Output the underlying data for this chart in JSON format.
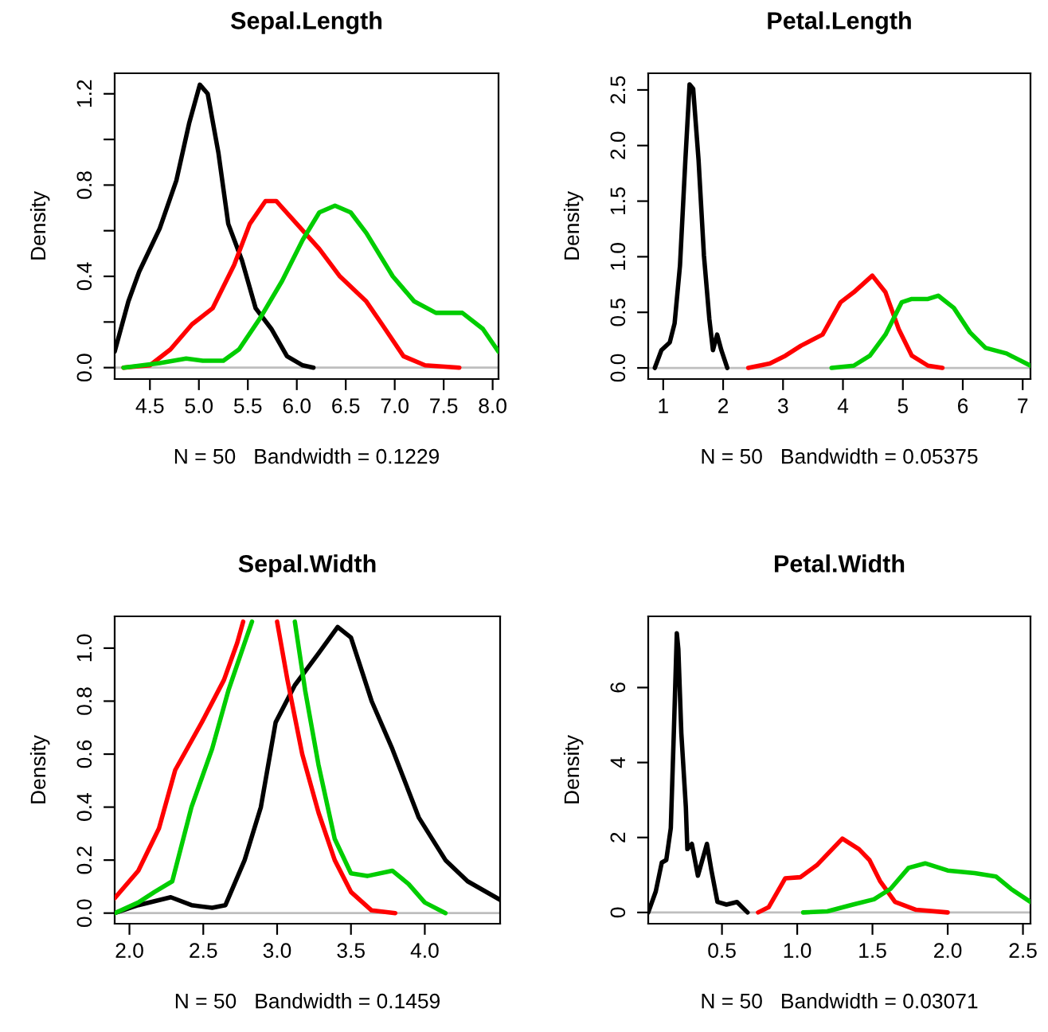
{
  "chart_data": [
    {
      "type": "line",
      "title": "Sepal.Length",
      "xlabel": "N = 50   Bandwidth = 0.1229",
      "ylabel": "Density",
      "xlim": [
        4.14,
        8.06
      ],
      "ylim": [
        -0.05,
        1.29
      ],
      "xticks": [
        4.5,
        {
          "value": 5,
          "label": "5.0"
        },
        5.5,
        {
          "value": 6,
          "label": "6.0"
        },
        6.5,
        {
          "value": 7,
          "label": "7.0"
        },
        7.5,
        {
          "value": 8,
          "label": "8.0"
        }
      ],
      "yticks": [
        {
          "value": 0,
          "label": "0.0"
        },
        {
          "value": 0.2,
          "label": null
        },
        0.4,
        {
          "value": 0.6,
          "label": null
        },
        0.8,
        {
          "value": 1.0,
          "label": null
        },
        1.2
      ],
      "ref_lines": [
        {
          "axis": "y",
          "value": 0,
          "color": "#bebebe"
        }
      ],
      "series": [
        {
          "color": "#000000",
          "x": [
            4.14,
            4.28,
            4.39,
            4.6,
            4.77,
            4.9,
            5.01,
            5.09,
            5.2,
            5.3,
            5.44,
            5.58,
            5.74,
            5.9,
            6.06,
            6.17
          ],
          "values": [
            0.07,
            0.29,
            0.42,
            0.61,
            0.82,
            1.07,
            1.24,
            1.2,
            0.94,
            0.63,
            0.47,
            0.26,
            0.17,
            0.05,
            0.01,
            0
          ]
        },
        {
          "color": "#ff0000",
          "x": [
            4.23,
            4.5,
            4.71,
            4.93,
            5.14,
            5.36,
            5.52,
            5.68,
            5.79,
            6.0,
            6.23,
            6.44,
            6.71,
            6.87,
            7.09,
            7.31,
            7.66
          ],
          "values": [
            0,
            0.01,
            0.08,
            0.19,
            0.26,
            0.45,
            0.63,
            0.73,
            0.73,
            0.63,
            0.52,
            0.4,
            0.29,
            0.19,
            0.05,
            0.01,
            0
          ]
        },
        {
          "color": "#00cd00",
          "x": [
            4.23,
            4.6,
            4.87,
            5.04,
            5.25,
            5.41,
            5.63,
            5.85,
            6.06,
            6.23,
            6.39,
            6.55,
            6.71,
            6.98,
            7.2,
            7.42,
            7.69,
            7.9,
            8.06
          ],
          "values": [
            0,
            0.02,
            0.04,
            0.03,
            0.03,
            0.08,
            0.22,
            0.38,
            0.56,
            0.68,
            0.71,
            0.68,
            0.59,
            0.4,
            0.29,
            0.24,
            0.24,
            0.17,
            0.07
          ]
        }
      ]
    },
    {
      "type": "line",
      "title": "Petal.Length",
      "xlabel": "N = 50   Bandwidth = 0.05375",
      "ylabel": "Density",
      "xlim": [
        0.75,
        7.13
      ],
      "ylim": [
        -0.1,
        2.65
      ],
      "xticks": [
        1,
        2,
        3,
        4,
        5,
        6,
        7
      ],
      "yticks": [
        {
          "value": 0,
          "label": "0.0"
        },
        0.5,
        {
          "value": 1,
          "label": "1.0"
        },
        1.5,
        {
          "value": 2,
          "label": "2.0"
        },
        2.5
      ],
      "ref_lines": [
        {
          "axis": "y",
          "value": 0,
          "color": "#bebebe"
        }
      ],
      "series": [
        {
          "color": "#000000",
          "x": [
            0.86,
            0.97,
            1.11,
            1.19,
            1.28,
            1.37,
            1.44,
            1.5,
            1.59,
            1.68,
            1.77,
            1.83,
            1.9,
            1.97,
            2.07
          ],
          "values": [
            0,
            0.16,
            0.23,
            0.4,
            0.92,
            1.87,
            2.55,
            2.51,
            1.87,
            1.01,
            0.44,
            0.16,
            0.3,
            0.16,
            0
          ]
        },
        {
          "color": "#ff0000",
          "x": [
            2.42,
            2.78,
            3.04,
            3.3,
            3.66,
            3.96,
            4.18,
            4.49,
            4.71,
            4.93,
            5.15,
            5.42,
            5.66
          ],
          "values": [
            0,
            0.04,
            0.11,
            0.2,
            0.3,
            0.59,
            0.68,
            0.83,
            0.68,
            0.35,
            0.11,
            0.02,
            0
          ]
        },
        {
          "color": "#00cd00",
          "x": [
            3.81,
            4.18,
            4.45,
            4.71,
            4.98,
            5.15,
            5.42,
            5.59,
            5.85,
            6.12,
            6.38,
            6.73,
            7.13
          ],
          "values": [
            0,
            0.02,
            0.11,
            0.3,
            0.59,
            0.62,
            0.62,
            0.65,
            0.54,
            0.32,
            0.18,
            0.13,
            0.02
          ]
        }
      ]
    },
    {
      "type": "line",
      "title": "Sepal.Width",
      "xlabel": "N = 50   Bandwidth = 0.1459",
      "ylabel": "Density",
      "xlim": [
        1.9,
        4.51
      ],
      "ylim": [
        -0.04,
        1.12
      ],
      "xticks": [
        {
          "value": 2,
          "label": "2.0"
        },
        2.5,
        {
          "value": 3,
          "label": "3.0"
        },
        3.5,
        {
          "value": 4,
          "label": "4.0"
        }
      ],
      "yticks": [
        {
          "value": 0,
          "label": "0.0"
        },
        0.2,
        0.4,
        0.6,
        0.8,
        {
          "value": 1,
          "label": "1.0"
        }
      ],
      "ref_lines": [
        {
          "axis": "y",
          "value": 0,
          "color": "#bebebe"
        }
      ],
      "series": [
        {
          "color": "#000000",
          "x": [
            1.9,
            2.06,
            2.28,
            2.42,
            2.56,
            2.65,
            2.78,
            2.89,
            2.99,
            3.12,
            3.28,
            3.41,
            3.5,
            3.64,
            3.78,
            3.96,
            4.14,
            4.29,
            4.51
          ],
          "values": [
            0,
            0.03,
            0.06,
            0.03,
            0.02,
            0.03,
            0.2,
            0.4,
            0.72,
            0.86,
            0.98,
            1.08,
            1.04,
            0.8,
            0.62,
            0.36,
            0.2,
            0.12,
            0.05
          ]
        },
        {
          "color": "#ff0000",
          "x": [
            1.9,
            2.06,
            2.2,
            2.31,
            2.49,
            2.64,
            2.73,
            2.77,
            2.88,
            3.0,
            3.07,
            3.17,
            3.28,
            3.39,
            3.5,
            3.64,
            3.8
          ],
          "values": [
            0.056,
            0.16,
            0.32,
            0.54,
            0.72,
            0.88,
            1.02,
            1.1,
            null,
            1.1,
            0.88,
            0.6,
            0.38,
            0.2,
            0.08,
            0.01,
            0
          ]
        },
        {
          "color": "#00cd00",
          "x": [
            1.9,
            2.06,
            2.17,
            2.29,
            2.42,
            2.56,
            2.67,
            2.78,
            2.83,
            2.98,
            3.12,
            3.19,
            3.28,
            3.39,
            3.5,
            3.61,
            3.78,
            3.89,
            4.0,
            4.14
          ],
          "values": [
            0,
            0.04,
            0.08,
            0.12,
            0.4,
            0.62,
            0.84,
            1.02,
            1.1,
            null,
            1.1,
            0.84,
            0.56,
            0.28,
            0.15,
            0.14,
            0.16,
            0.11,
            0.04,
            0
          ]
        }
      ]
    },
    {
      "type": "line",
      "title": "Petal.Width",
      "xlabel": "N = 50   Bandwidth = 0.03071",
      "ylabel": "Density",
      "xlim": [
        0.01,
        2.55
      ],
      "ylim": [
        -0.3,
        7.9
      ],
      "xticks": [
        0.5,
        {
          "value": 1,
          "label": "1.0"
        },
        1.5,
        {
          "value": 2,
          "label": "2.0"
        },
        2.5
      ],
      "yticks": [
        0,
        2,
        4,
        6
      ],
      "ref_lines": [
        {
          "axis": "y",
          "value": 0,
          "color": "#bebebe"
        }
      ],
      "series": [
        {
          "color": "#000000",
          "x": [
            0.01,
            0.06,
            0.1,
            0.13,
            0.16,
            0.18,
            0.2,
            0.21,
            0.23,
            0.26,
            0.27,
            0.3,
            0.34,
            0.4,
            0.43,
            0.47,
            0.53,
            0.6,
            0.67
          ],
          "values": [
            0,
            0.56,
            1.33,
            1.4,
            2.25,
            4.78,
            7.45,
            7.03,
            4.78,
            2.81,
            1.69,
            1.83,
            0.98,
            1.83,
            1.12,
            0.28,
            0.21,
            0.28,
            0
          ]
        },
        {
          "color": "#ff0000",
          "x": [
            0.74,
            0.81,
            0.92,
            1.02,
            1.13,
            1.3,
            1.41,
            1.48,
            1.55,
            1.65,
            1.79,
            2.0
          ],
          "values": [
            0,
            0.14,
            0.91,
            0.94,
            1.26,
            1.97,
            1.69,
            1.4,
            0.84,
            0.28,
            0.07,
            0
          ]
        },
        {
          "color": "#00cd00",
          "x": [
            1.04,
            1.2,
            1.37,
            1.51,
            1.62,
            1.74,
            1.85,
            2.0,
            2.18,
            2.32,
            2.42,
            2.55
          ],
          "values": [
            0,
            0.03,
            0.21,
            0.35,
            0.63,
            1.19,
            1.31,
            1.12,
            1.05,
            0.96,
            0.63,
            0.28
          ]
        }
      ]
    }
  ]
}
